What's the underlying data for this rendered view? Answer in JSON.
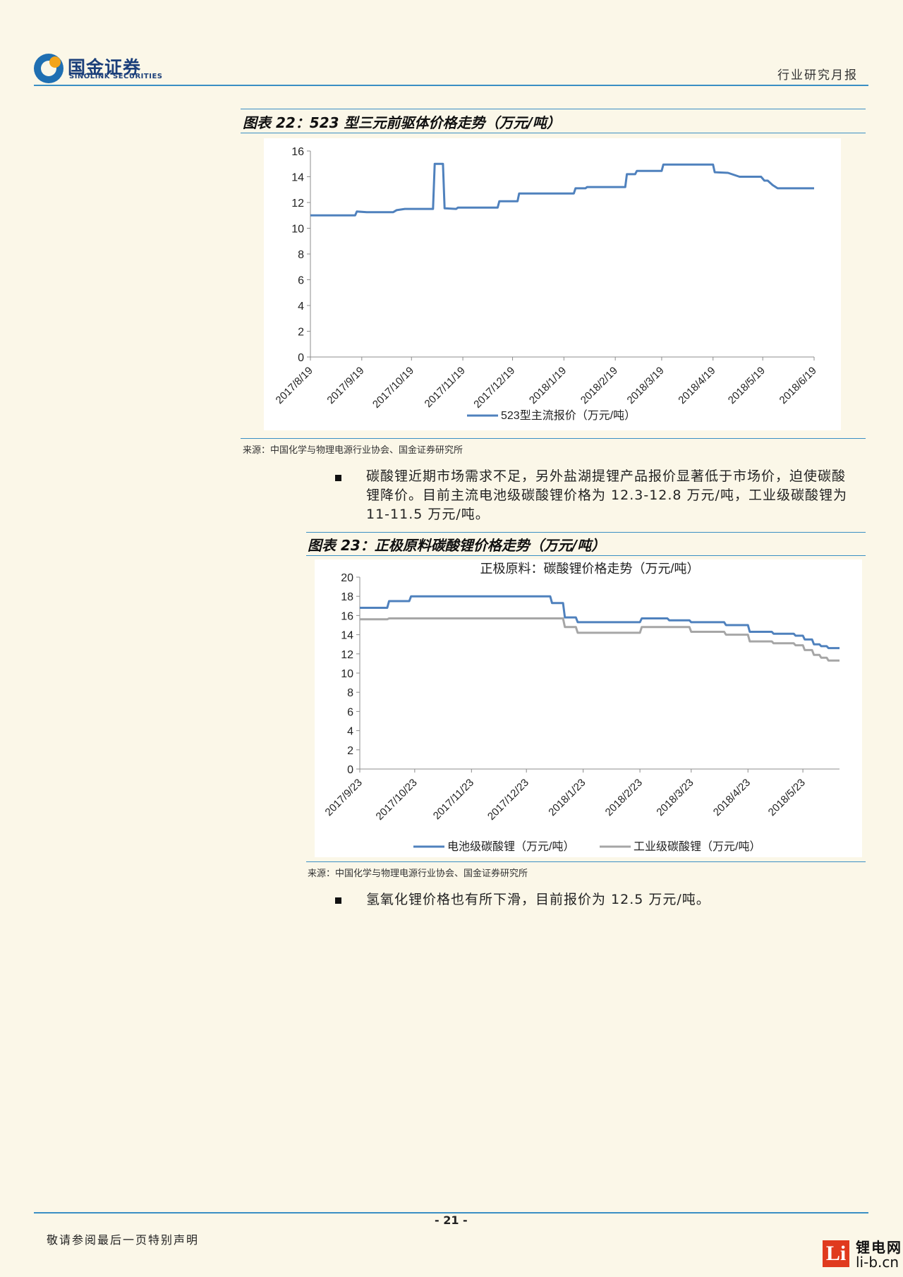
{
  "header": {
    "logo_cn": "国金证券",
    "logo_en": "SINOLINK SECURITIES",
    "report_type": "行业研究月报"
  },
  "figure22": {
    "title": "图表 22：523 型三元前驱体价格走势（万元/吨）",
    "source": "来源：中国化学与物理电源行业协会、国金证券研究所"
  },
  "bullet1": "碳酸锂近期市场需求不足，另外盐湖提锂产品报价显著低于市场价，迫使碳酸锂降价。目前主流电池级碳酸锂价格为 12.3-12.8 万元/吨，工业级碳酸锂为 11-11.5 万元/吨。",
  "figure23": {
    "title": "图表 23：正极原料碳酸锂价格走势（万元/吨）",
    "source": "来源：中国化学与物理电源行业协会、国金证券研究所"
  },
  "bullet2": "氢氧化锂价格也有所下滑，目前报价为 12.5 万元/吨。",
  "footer": {
    "page": "- 21 -",
    "disclaimer": "敬请参阅最后一页特别声明",
    "watermark_cn": "锂电网",
    "watermark_en": "li-b.cn",
    "watermark_mark": "Li"
  },
  "chart_data": [
    {
      "type": "line",
      "title": "",
      "ylim": [
        0,
        16
      ],
      "yticks": [
        0,
        2,
        4,
        6,
        8,
        10,
        12,
        14,
        16
      ],
      "x_tick_labels": [
        "2017/8/19",
        "2017/9/19",
        "2017/10/19",
        "2017/11/19",
        "2017/12/19",
        "2018/1/19",
        "2018/2/19",
        "2018/3/19",
        "2018/4/19",
        "2018/5/19",
        "2018/6/19"
      ],
      "legend_position": "bottom",
      "grid": false,
      "series": [
        {
          "name": "523型主流报价（万元/吨）",
          "color": "#4f81bd",
          "x": [
            "2017/8/19",
            "2017/9/15",
            "2017/9/16",
            "2017/9/22",
            "2017/10/8",
            "2017/10/10",
            "2017/10/15",
            "2017/10/20",
            "2017/11/1",
            "2017/11/2",
            "2017/11/7",
            "2017/11/8",
            "2017/11/15",
            "2017/11/16",
            "2017/12/10",
            "2017/12/11",
            "2017/12/22",
            "2017/12/23",
            "2018/1/25",
            "2018/1/26",
            "2018/2/1",
            "2018/2/2",
            "2018/2/25",
            "2018/2/26",
            "2018/3/3",
            "2018/3/4",
            "2018/3/19",
            "2018/3/20",
            "2018/4/19",
            "2018/4/20",
            "2018/4/28",
            "2018/5/5",
            "2018/5/18",
            "2018/5/20",
            "2018/5/22",
            "2018/5/25",
            "2018/5/28",
            "2018/6/19"
          ],
          "values": [
            11.0,
            11.0,
            11.3,
            11.25,
            11.25,
            11.4,
            11.5,
            11.5,
            11.5,
            15.0,
            15.0,
            11.55,
            11.5,
            11.6,
            11.6,
            12.1,
            12.1,
            12.7,
            12.7,
            13.1,
            13.1,
            13.2,
            13.2,
            14.2,
            14.2,
            14.45,
            14.45,
            14.95,
            14.95,
            14.35,
            14.3,
            14.0,
            14.0,
            13.7,
            13.7,
            13.35,
            13.1,
            13.1
          ]
        }
      ]
    },
    {
      "type": "line",
      "title": "正极原料：碳酸锂价格走势（万元/吨）",
      "ylim": [
        0,
        20
      ],
      "yticks": [
        0,
        2,
        4,
        6,
        8,
        10,
        12,
        14,
        16,
        18,
        20
      ],
      "x_tick_labels": [
        "2017/9/23",
        "2017/10/23",
        "2017/11/23",
        "2017/12/23",
        "2018/1/23",
        "2018/2/23",
        "2018/3/23",
        "2018/4/23",
        "2018/5/23"
      ],
      "legend_position": "bottom",
      "grid": false,
      "series": [
        {
          "name": "电池级碳酸锂（万元/吨）",
          "color": "#4f81bd",
          "x": [
            "2017/9/23",
            "2017/10/8",
            "2017/10/9",
            "2017/10/20",
            "2017/10/21",
            "2018/1/5",
            "2018/1/6",
            "2018/1/12",
            "2018/1/13",
            "2018/1/19",
            "2018/1/20",
            "2018/2/23",
            "2018/2/24",
            "2018/3/10",
            "2018/3/11",
            "2018/3/22",
            "2018/3/23",
            "2018/4/10",
            "2018/4/11",
            "2018/4/23",
            "2018/4/24",
            "2018/5/6",
            "2018/5/7",
            "2018/5/18",
            "2018/5/19",
            "2018/5/23",
            "2018/5/24",
            "2018/5/28",
            "2018/5/29",
            "2018/6/1",
            "2018/6/2",
            "2018/6/5",
            "2018/6/6",
            "2018/6/12"
          ],
          "values": [
            16.8,
            16.8,
            17.5,
            17.5,
            18.0,
            18.0,
            17.3,
            17.3,
            15.8,
            15.8,
            15.3,
            15.3,
            15.7,
            15.7,
            15.5,
            15.5,
            15.3,
            15.3,
            15.0,
            15.0,
            14.3,
            14.3,
            14.1,
            14.1,
            13.9,
            13.9,
            13.5,
            13.5,
            13.0,
            13.0,
            12.8,
            12.8,
            12.6,
            12.6
          ]
        },
        {
          "name": "工业级碳酸锂（万元/吨）",
          "color": "#a6a6a6",
          "x": [
            "2017/9/23",
            "2017/10/8",
            "2017/10/9",
            "2018/1/12",
            "2018/1/13",
            "2018/1/19",
            "2018/1/20",
            "2018/2/23",
            "2018/2/24",
            "2018/3/22",
            "2018/3/23",
            "2018/4/10",
            "2018/4/11",
            "2018/4/23",
            "2018/4/24",
            "2018/5/6",
            "2018/5/7",
            "2018/5/18",
            "2018/5/19",
            "2018/5/23",
            "2018/5/24",
            "2018/5/28",
            "2018/5/29",
            "2018/6/1",
            "2018/6/2",
            "2018/6/5",
            "2018/6/6",
            "2018/6/12"
          ],
          "values": [
            15.6,
            15.6,
            15.7,
            15.7,
            14.8,
            14.8,
            14.2,
            14.2,
            14.8,
            14.8,
            14.3,
            14.3,
            14.0,
            14.0,
            13.3,
            13.3,
            13.1,
            13.1,
            12.9,
            12.9,
            12.4,
            12.4,
            11.9,
            11.9,
            11.6,
            11.6,
            11.3,
            11.3
          ]
        }
      ]
    }
  ]
}
